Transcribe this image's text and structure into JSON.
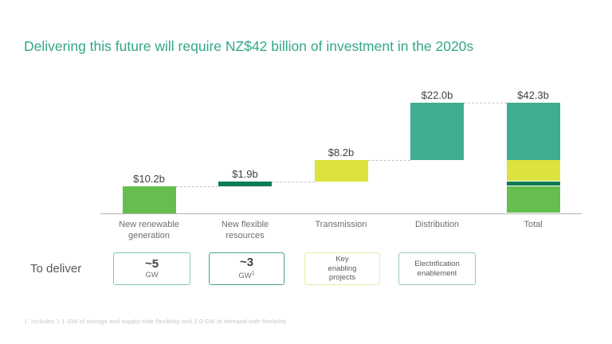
{
  "title": {
    "text": "Delivering this future will require NZ$42 billion of investment in the 2020s",
    "color": "#33a689"
  },
  "chart_data": {
    "type": "waterfall",
    "title": "Delivering this future will require NZ$42 billion of investment in the 2020s",
    "categories": [
      [
        "New renewable",
        "generation"
      ],
      [
        "New flexible",
        "resources"
      ],
      [
        "Transmission"
      ],
      [
        "Distribution"
      ],
      [
        "Total"
      ]
    ],
    "values": [
      10.2,
      1.9,
      8.2,
      22.0,
      42.3
    ],
    "value_labels": [
      "$10.2b",
      "$1.9b",
      "$8.2b",
      "$22.0b",
      "$42.3b"
    ],
    "is_total": [
      false,
      false,
      false,
      false,
      true
    ],
    "bar_colors": [
      "#66be4f",
      "#0e7c52",
      "#dce23e",
      "#3dae8f",
      null
    ],
    "total_stack_colors_bottom_up": [
      "#66be4f",
      "#0e7c52",
      "#dce23e",
      "#3dae8f"
    ],
    "baseline_value": 0,
    "ylim": [
      0,
      42.3
    ],
    "grid": "off",
    "legend": "none",
    "connector_style": "dashed"
  },
  "deliver": {
    "label": "To deliver",
    "boxes": [
      {
        "title": "~5",
        "subtitle": "GW",
        "subtitle_sup": "",
        "border": "#82cba4"
      },
      {
        "title": "~3",
        "subtitle": "GW",
        "subtitle_sup": "1",
        "border": "#43a48e"
      },
      {
        "lines": [
          "Key",
          "enabling",
          "projects"
        ],
        "border": "#eaeaa8"
      },
      {
        "lines": [
          "Electrification",
          "enablement"
        ],
        "border": "#92cbc2"
      }
    ]
  },
  "footnote": "1. Includes 1.1 GW of storage and supply-side flexibility and 2.0 GW of demand-side flexibility",
  "colors": {
    "axis": "#b5b5b5",
    "connector": "#c8c8c8",
    "value_label": "#414042",
    "category_label": "#6d6e71",
    "footnote": "#c5c5c5"
  }
}
